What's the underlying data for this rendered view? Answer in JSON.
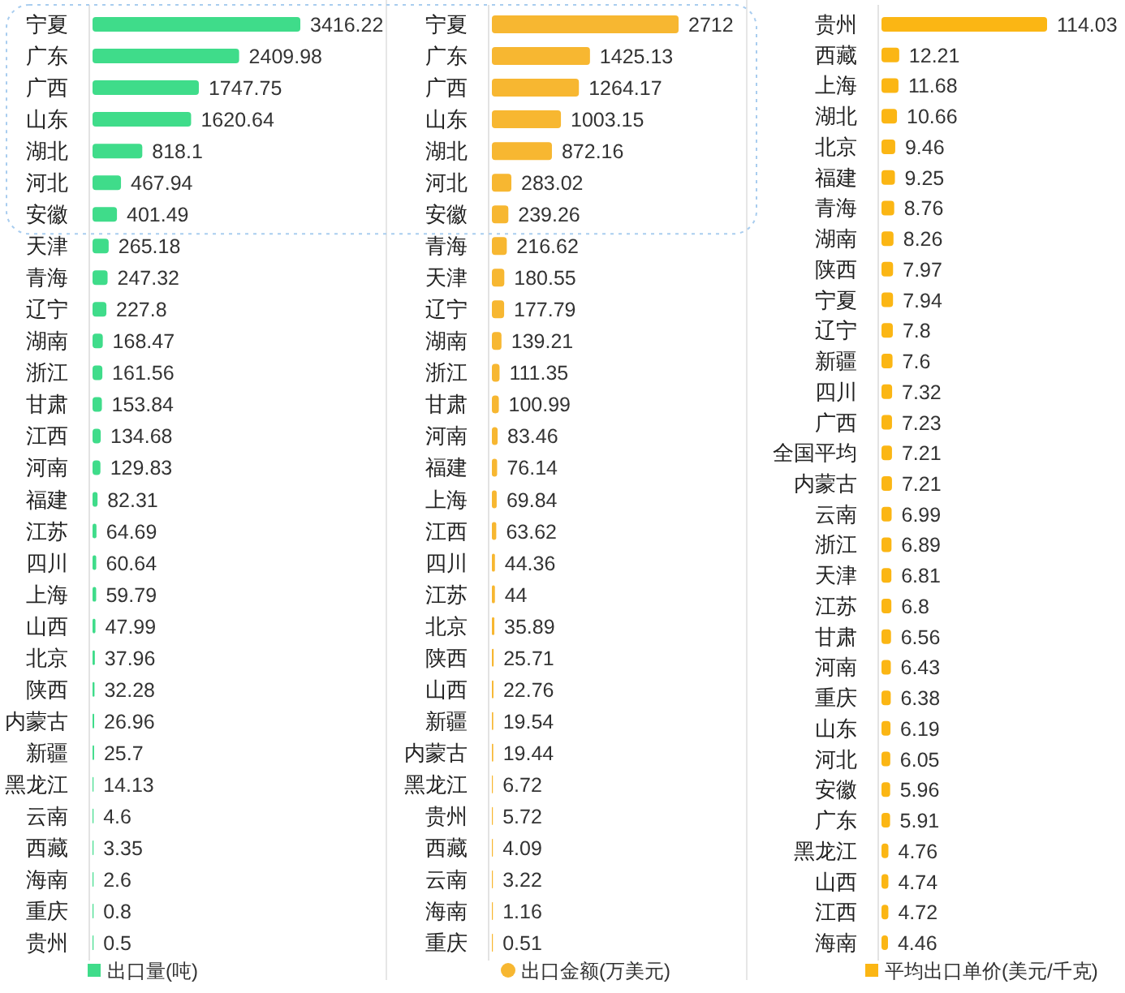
{
  "chart_data": [
    {
      "type": "bar",
      "orientation": "horizontal",
      "categories": [
        "宁夏",
        "广东",
        "广西",
        "山东",
        "湖北",
        "河北",
        "安徽",
        "天津",
        "青海",
        "辽宁",
        "湖南",
        "浙江",
        "甘肃",
        "江西",
        "河南",
        "福建",
        "江苏",
        "四川",
        "上海",
        "山西",
        "北京",
        "陕西",
        "内蒙古",
        "新疆",
        "黑龙江",
        "云南",
        "西藏",
        "海南",
        "重庆",
        "贵州"
      ],
      "series": [
        {
          "name": "出口量(吨)",
          "color": "#3fdc8a",
          "values": [
            3416.22,
            2409.98,
            1747.75,
            1620.64,
            818.1,
            467.94,
            401.49,
            265.18,
            247.32,
            227.8,
            168.47,
            161.56,
            153.84,
            134.68,
            129.83,
            82.31,
            64.69,
            60.64,
            59.79,
            47.99,
            37.96,
            32.28,
            26.96,
            25.7,
            14.13,
            4.6,
            3.35,
            2.6,
            0.8,
            0.5
          ]
        }
      ],
      "data_labels": true,
      "legend": "bottom",
      "tick_labels": "y"
    },
    {
      "type": "bar",
      "orientation": "horizontal",
      "categories": [
        "宁夏",
        "广东",
        "广西",
        "山东",
        "湖北",
        "河北",
        "安徽",
        "青海",
        "天津",
        "辽宁",
        "湖南",
        "浙江",
        "甘肃",
        "河南",
        "福建",
        "上海",
        "江西",
        "四川",
        "江苏",
        "北京",
        "陕西",
        "山西",
        "新疆",
        "内蒙古",
        "黑龙江",
        "贵州",
        "西藏",
        "云南",
        "海南",
        "重庆"
      ],
      "series": [
        {
          "name": "出口金额(万美元)",
          "color": "#f7b731",
          "values": [
            2712,
            1425.13,
            1264.17,
            1003.15,
            872.16,
            283.02,
            239.26,
            216.62,
            180.55,
            177.79,
            139.21,
            111.35,
            100.99,
            83.46,
            76.14,
            69.84,
            63.62,
            44.36,
            44,
            35.89,
            25.71,
            22.76,
            19.54,
            19.44,
            6.72,
            5.72,
            4.09,
            3.22,
            1.16,
            0.51
          ]
        }
      ],
      "data_labels": true,
      "legend": "bottom",
      "tick_labels": "y"
    },
    {
      "type": "bar",
      "orientation": "horizontal",
      "categories": [
        "贵州",
        "西藏",
        "上海",
        "湖北",
        "北京",
        "福建",
        "青海",
        "湖南",
        "陕西",
        "宁夏",
        "辽宁",
        "新疆",
        "四川",
        "广西",
        "全国平均",
        "内蒙古",
        "云南",
        "浙江",
        "天津",
        "江苏",
        "甘肃",
        "河南",
        "重庆",
        "山东",
        "河北",
        "安徽",
        "广东",
        "黑龙江",
        "山西",
        "江西",
        "海南"
      ],
      "series": [
        {
          "name": "平均出口单价(美元/千克)",
          "color": "#fbb614",
          "values": [
            114.03,
            12.21,
            11.68,
            10.66,
            9.46,
            9.25,
            8.76,
            8.26,
            7.97,
            7.94,
            7.8,
            7.6,
            7.32,
            7.23,
            7.21,
            7.21,
            6.99,
            6.89,
            6.81,
            6.8,
            6.56,
            6.43,
            6.38,
            6.19,
            6.05,
            5.96,
            5.91,
            4.76,
            4.74,
            4.72,
            4.46
          ]
        }
      ],
      "data_labels": true,
      "legend": "bottom",
      "tick_labels": "y"
    }
  ]
}
